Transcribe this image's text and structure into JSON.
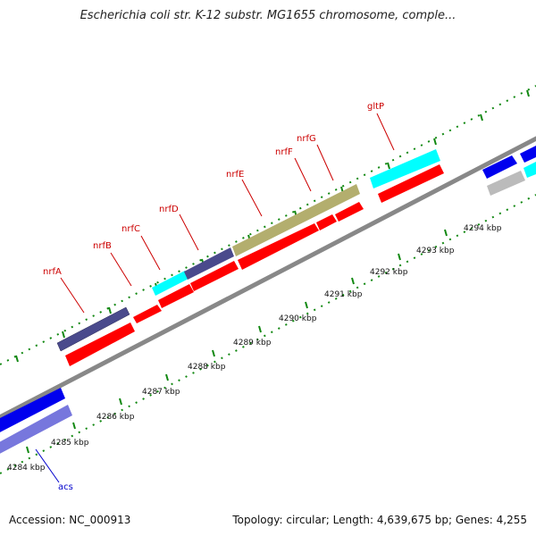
{
  "title": "Escherichia coli str. K-12 substr. MG1655 chromosome, comple...",
  "footer": {
    "accession": "Accession: NC_000913",
    "summary": "Topology: circular; Length: 4,639,675 bp; Genes: 4,255"
  },
  "scale_labels": [
    "4284 kbp",
    "4285 kbp",
    "4286 kbp",
    "4287 kbp",
    "4288 kbp",
    "4289 kbp",
    "4290 kbp",
    "4291 kbp",
    "4292 kbp",
    "4293 kbp",
    "4294 kbp"
  ],
  "gene_labels": [
    "nrfA",
    "nrfB",
    "nrfC",
    "nrfD",
    "nrfE",
    "nrfF",
    "nrfG",
    "gltP",
    "acs"
  ],
  "colors": {
    "gene_label": "#cc0000",
    "acs_label": "#0000cc",
    "feature_red": "#ff0000",
    "feature_navy": "#4a4a8c",
    "feature_cyan": "#00ffff",
    "feature_khaki": "#b3ae6e",
    "feature_blue": "#0000ee",
    "feature_lightblue": "#7777dd",
    "feature_grey": "#bbbbbb",
    "backbone": "#888888",
    "tick": "#118811"
  }
}
